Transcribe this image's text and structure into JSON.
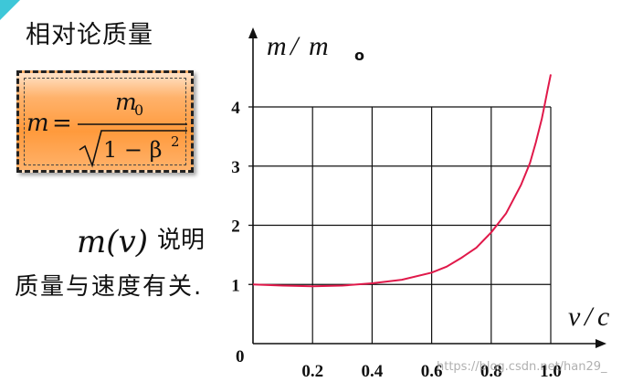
{
  "page": {
    "title": "相对论质量",
    "formula": {
      "lhs": "m",
      "equals": "=",
      "numerator": "m",
      "numerator_sub": "0",
      "radicand": "1 − β",
      "radicand_sup": "2"
    },
    "description_math": "m(v)",
    "description_line1": "说明",
    "description_line2": "质量与速度有关."
  },
  "watermark": "https://blog.csdn.net/han29_",
  "colors": {
    "curve": "#e0194a",
    "grid": "#111111",
    "formula_bg": "#ff9a3c",
    "corner_accent": "#3ec7d8"
  },
  "chart_data": {
    "type": "line",
    "x_axis_label": "v",
    "x_axis_label_den": "c",
    "y_axis_label": "m",
    "y_axis_label_den": "m",
    "y_axis_label_sub": "o",
    "origin_label": "0",
    "x_ticks": [
      "0.2",
      "0.4",
      "0.6",
      "0.8",
      "1.0"
    ],
    "y_ticks": [
      "1",
      "2",
      "3",
      "4"
    ],
    "xlim": [
      0,
      1.2
    ],
    "ylim": [
      0,
      4.6
    ],
    "grid": true,
    "series": [
      {
        "x": [
          0.0,
          0.1,
          0.2,
          0.3,
          0.4,
          0.5,
          0.6,
          0.65,
          0.7,
          0.75,
          0.8,
          0.85,
          0.9,
          0.93,
          0.95,
          0.97,
          0.98,
          0.99,
          1.0
        ],
        "y": [
          1.0,
          0.98,
          0.97,
          0.98,
          1.02,
          1.08,
          1.2,
          1.3,
          1.45,
          1.62,
          1.88,
          2.2,
          2.68,
          3.05,
          3.4,
          3.8,
          4.05,
          4.3,
          4.55
        ]
      }
    ]
  }
}
